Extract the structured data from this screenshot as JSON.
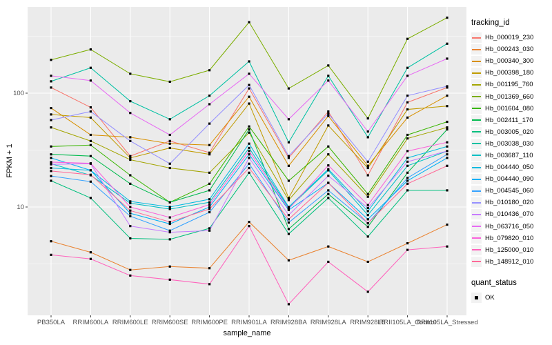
{
  "figure": {
    "background": "#FFFFFF",
    "panel_background": "#EBEBEB",
    "grid_color": "#FFFFFF",
    "axis_text_color": "#4D4D4D",
    "tick_color": "#333333",
    "point_color": "#000000"
  },
  "chart_data": {
    "type": "line",
    "title": "",
    "xlabel": "sample_name",
    "ylabel": "FPKM + 1",
    "yscale": "log10",
    "ytick_labels": [
      "10",
      "100"
    ],
    "ytick_values": [
      10,
      100
    ],
    "yminor_values": [
      3.162,
      31.62,
      316.2
    ],
    "ylim": [
      1.12,
      573
    ],
    "grid": "on",
    "legend_position": "right",
    "legend_title": "tracking_id",
    "legend2": {
      "title": "quant_status",
      "items": [
        "OK"
      ],
      "marker": "black-square"
    },
    "point_marker": "filled-square",
    "categories": [
      "PB350LA",
      "RRIM600LA",
      "RRIM600LE",
      "RRIM600SE",
      "RRIM600PE",
      "RRIM901LA",
      "RRIM928BA",
      "RRIM928LA",
      "RRIM928LE",
      "RRII105LA_Control",
      "RRII105LA_Stressed"
    ],
    "series": [
      {
        "name": "Hb_000019_230",
        "color": "#F8766D",
        "values": [
          112,
          75,
          28,
          38,
          30,
          110,
          27,
          69,
          19,
          83,
          112
        ]
      },
      {
        "name": "Hb_000243_030",
        "color": "#EA8331",
        "values": [
          5.0,
          4.0,
          2.8,
          3.0,
          2.9,
          7.4,
          3.4,
          4.5,
          3.3,
          4.8,
          7.0
        ]
      },
      {
        "name": "Hb_000340_300",
        "color": "#D89000",
        "values": [
          74,
          43,
          41,
          36,
          35,
          93,
          23,
          63,
          23,
          61,
          95
        ]
      },
      {
        "name": "Hb_000398_180",
        "color": "#C09B00",
        "values": [
          65,
          61,
          27,
          33,
          29,
          81,
          12,
          52,
          22,
          72,
          77
        ]
      },
      {
        "name": "Hb_001195_760",
        "color": "#A3A500",
        "values": [
          50,
          38,
          26,
          22,
          20,
          45,
          11.5,
          29,
          12.3,
          40,
          50
        ]
      },
      {
        "name": "Hb_001369_660",
        "color": "#7CAE00",
        "values": [
          196,
          242,
          148,
          126,
          159,
          420,
          110,
          175,
          60,
          300,
          460
        ]
      },
      {
        "name": "Hb_001604_080",
        "color": "#39B600",
        "values": [
          34,
          35,
          19,
          11,
          16,
          51,
          17,
          34,
          13,
          43,
          56
        ]
      },
      {
        "name": "Hb_002411_170",
        "color": "#00BB4E",
        "values": [
          29,
          28,
          16,
          11,
          14,
          48,
          6.4,
          13,
          6.7,
          20,
          48
        ]
      },
      {
        "name": "Hb_003005_020",
        "color": "#00BF7D",
        "values": [
          17,
          12,
          5.3,
          5.2,
          6.5,
          20,
          5.8,
          12,
          5.5,
          14,
          14
        ]
      },
      {
        "name": "Hb_003038_030",
        "color": "#00C1A3",
        "values": [
          127,
          167,
          85,
          59,
          95,
          190,
          37,
          142,
          41,
          167,
          272
        ]
      },
      {
        "name": "Hb_003687_110",
        "color": "#00BFC4",
        "values": [
          24,
          19,
          10.8,
          9.6,
          11,
          33,
          9.8,
          21,
          8.5,
          23,
          31
        ]
      },
      {
        "name": "Hb_004440_050",
        "color": "#00BAE0",
        "values": [
          22,
          21,
          11.2,
          10,
          11.7,
          36,
          10,
          21.5,
          9.2,
          27,
          34
        ]
      },
      {
        "name": "Hb_004440_090",
        "color": "#00B0F6",
        "values": [
          27,
          21,
          8.8,
          7.1,
          10,
          29,
          9.4,
          16.3,
          7.8,
          17,
          27
        ]
      },
      {
        "name": "Hb_004545_060",
        "color": "#35A2FF",
        "values": [
          18.7,
          16.7,
          8.3,
          6.2,
          9.0,
          24,
          7.3,
          14,
          7.2,
          18,
          29
        ]
      },
      {
        "name": "Hb_010180_020",
        "color": "#9590FF",
        "values": [
          58,
          69,
          38,
          24,
          54,
          118,
          28,
          66,
          25,
          95,
          115
        ]
      },
      {
        "name": "Hb_010436_070",
        "color": "#C77CFF",
        "values": [
          23.7,
          24,
          6.8,
          6.0,
          6.2,
          27,
          8.5,
          18.8,
          9.8,
          25,
          31
        ]
      },
      {
        "name": "Hb_063716_050",
        "color": "#E76BF3",
        "values": [
          142,
          129,
          67,
          43,
          80,
          148,
          59,
          129,
          46,
          142,
          201
        ]
      },
      {
        "name": "Hb_079820_010",
        "color": "#FA62DB",
        "values": [
          24.8,
          24.2,
          10.0,
          8.1,
          10.5,
          31,
          9.6,
          23.2,
          10.4,
          31,
          37
        ]
      },
      {
        "name": "Hb_125000_010",
        "color": "#FF62BC",
        "values": [
          3.8,
          3.5,
          2.5,
          2.3,
          2.1,
          6.8,
          1.4,
          3.3,
          1.8,
          4.2,
          4.5
        ]
      },
      {
        "name": "Hb_148912_010",
        "color": "#FF6A98",
        "values": [
          20.7,
          19.2,
          9.3,
          7.4,
          9.6,
          22,
          7.8,
          16.3,
          7.2,
          16,
          23
        ]
      }
    ]
  }
}
